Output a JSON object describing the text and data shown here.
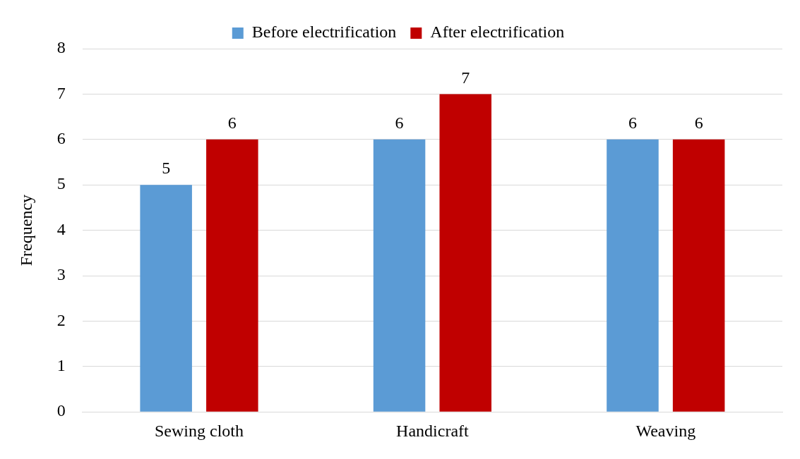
{
  "chart_data": {
    "type": "bar",
    "ylabel": "Frequency",
    "categories": [
      "Sewing cloth",
      "Handicraft",
      "Weaving"
    ],
    "series": [
      {
        "name": "Before electrification",
        "color": "#5b9bd5",
        "values": [
          5,
          6,
          6
        ]
      },
      {
        "name": "After electrification",
        "color": "#c00000",
        "values": [
          6,
          7,
          6
        ]
      }
    ],
    "ylim": [
      0,
      8
    ],
    "yticks": [
      0,
      1,
      2,
      3,
      4,
      5,
      6,
      7,
      8
    ],
    "grid": "y",
    "legend": "top",
    "data_labels": true
  }
}
